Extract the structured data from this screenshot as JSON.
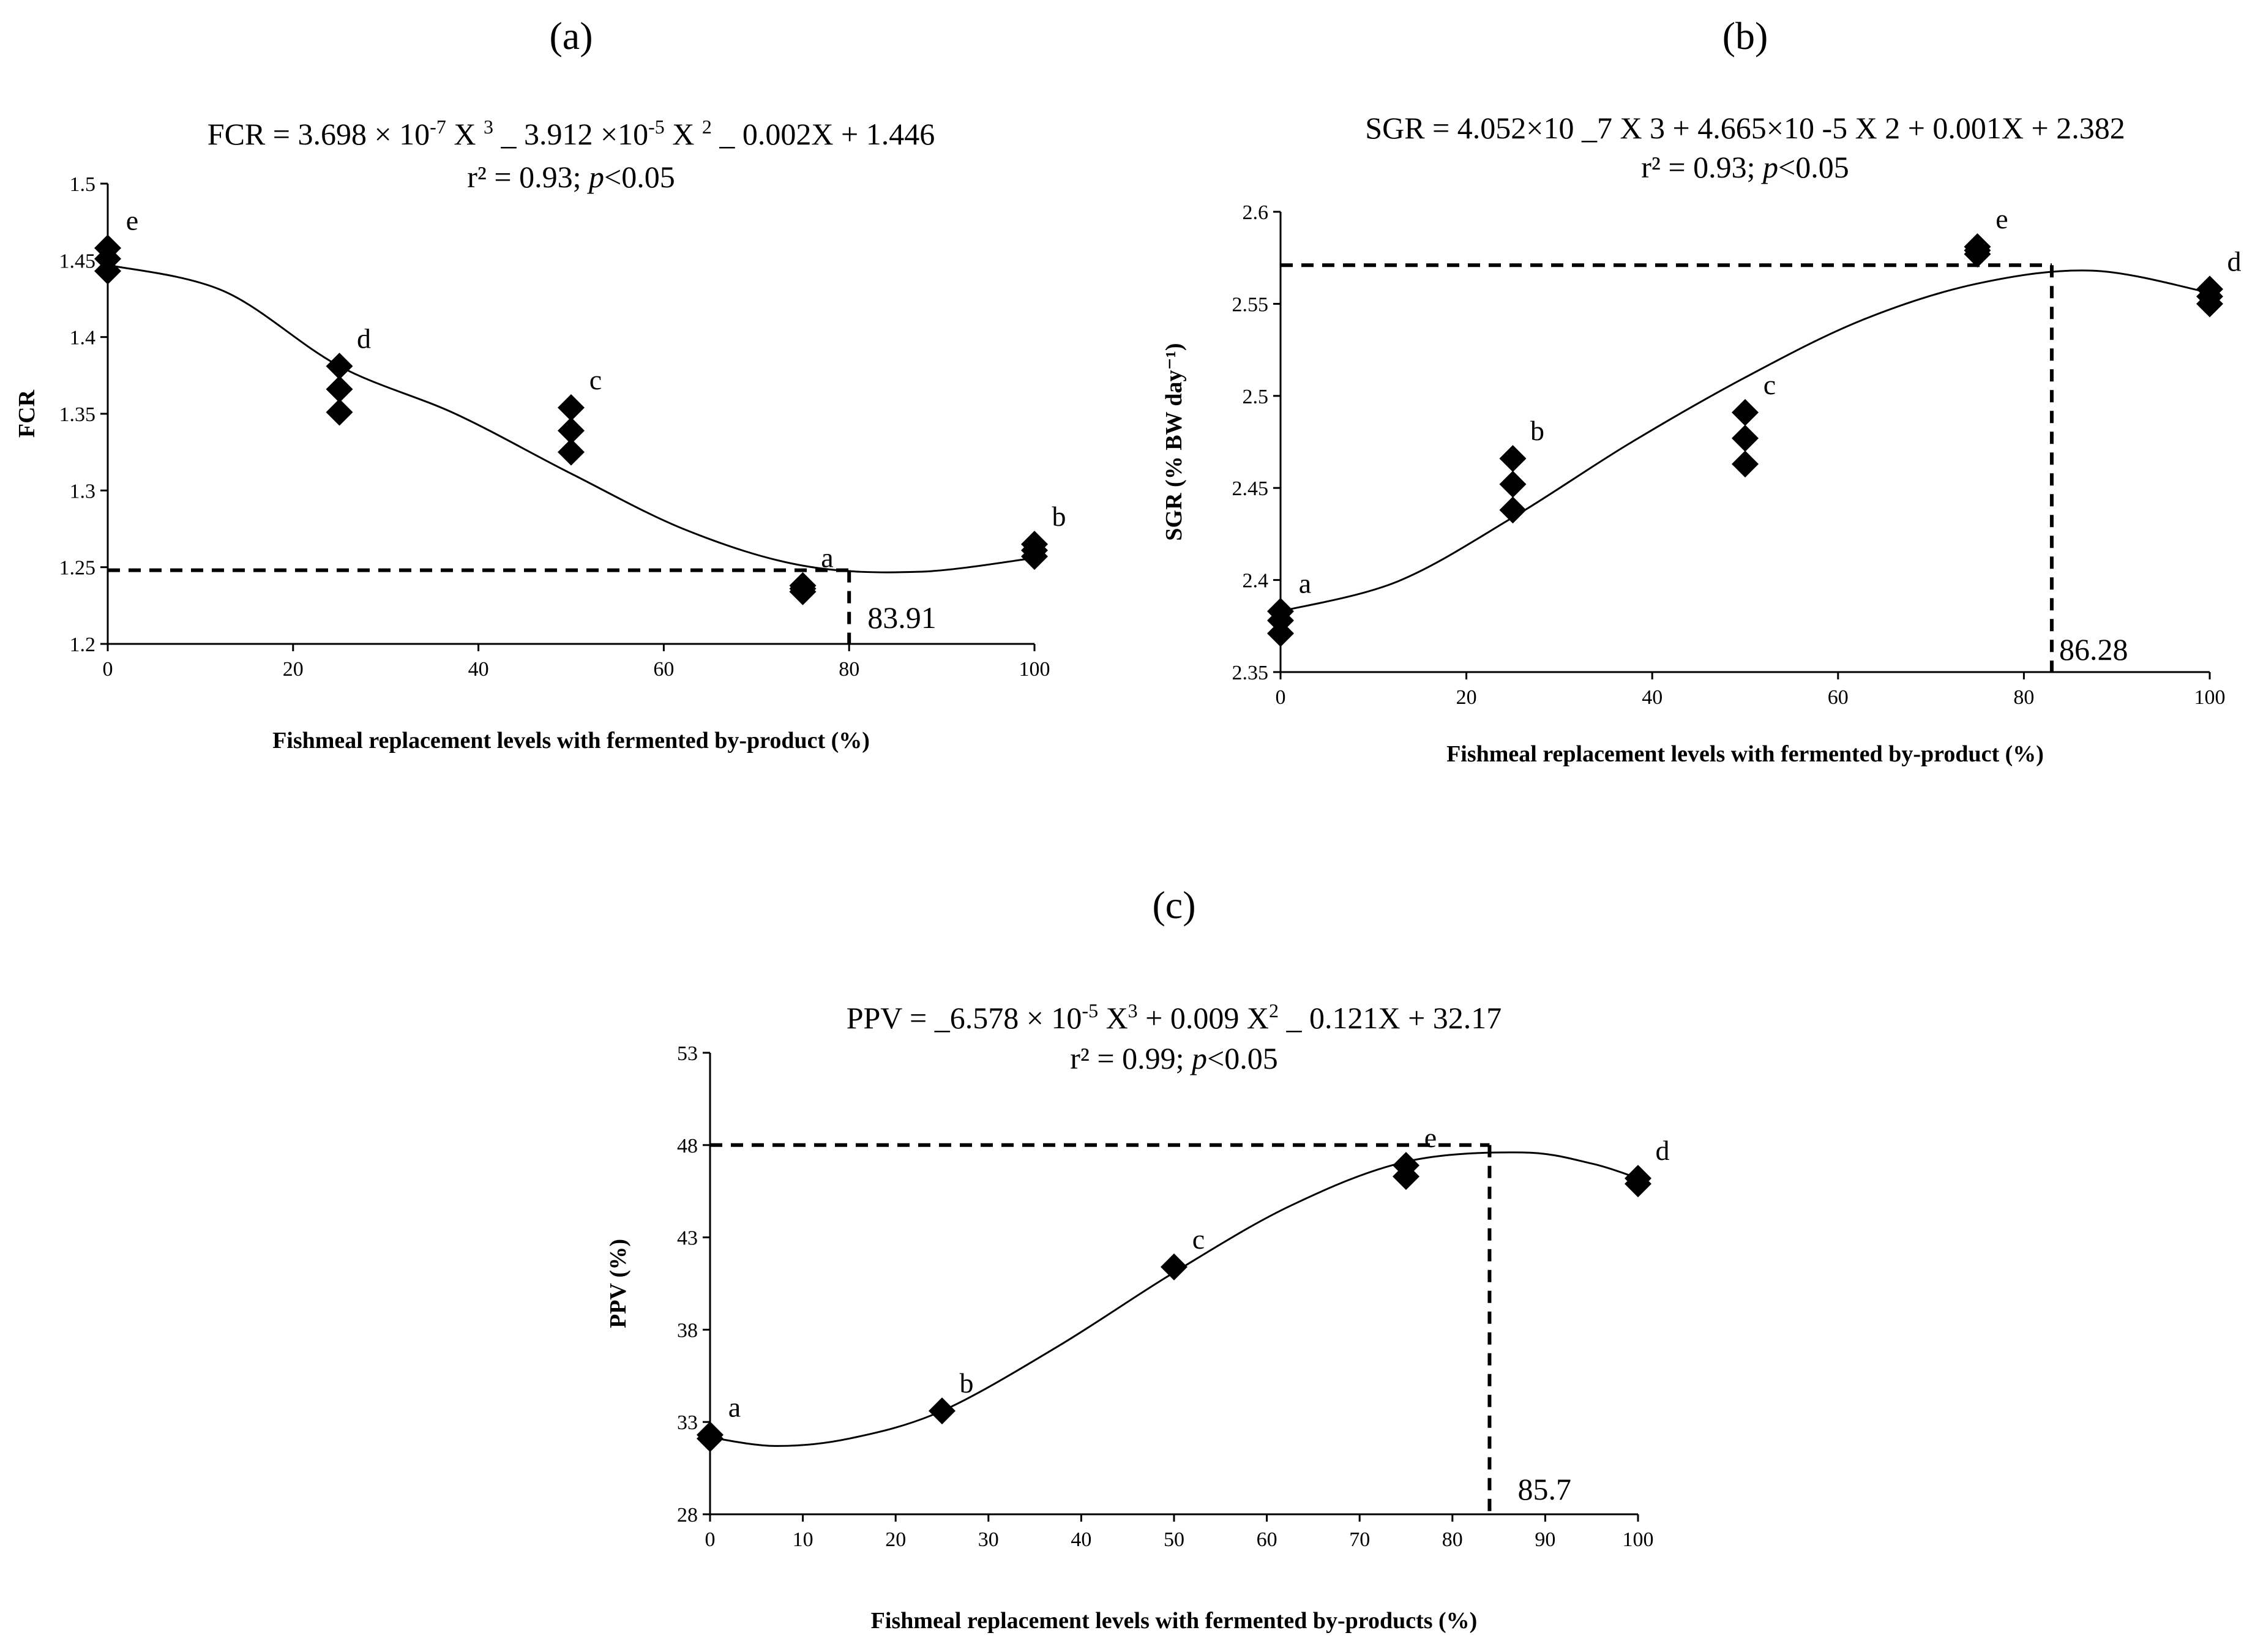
{
  "chart_data": [
    {
      "panel": "(a)",
      "type": "scatter",
      "title_lines": [
        "FCR = 3.698 × 10",
        "-7",
        " X ",
        "3",
        " _ 3.912 ×10",
        "-5",
        " X ",
        "2",
        " _ 0.002X + 1.446"
      ],
      "stats": {
        "r2": "r² = 0.93; ",
        "p": "p",
        "rest": "<0.05"
      },
      "ylabel": "FCR",
      "xlabel": "Fishmeal replacement levels with fermented by-product (%)",
      "xlim": [
        0,
        100
      ],
      "ylim": [
        1.2,
        1.5
      ],
      "xticks": [
        0,
        20,
        40,
        60,
        80,
        100
      ],
      "xtick_labels": [
        "0",
        "20",
        "40",
        "60",
        "80",
        "100"
      ],
      "yticks": [
        1.2,
        1.25,
        1.3,
        1.35,
        1.4,
        1.45,
        1.5
      ],
      "ytick_labels": [
        "1.2",
        "1.25",
        "1.3",
        "1.35",
        "1.4",
        "1.45",
        "1.5"
      ],
      "points": [
        {
          "x": 0,
          "y": 1.458
        },
        {
          "x": 0,
          "y": 1.451
        },
        {
          "x": 0,
          "y": 1.443
        },
        {
          "x": 25,
          "y": 1.381
        },
        {
          "x": 25,
          "y": 1.366
        },
        {
          "x": 25,
          "y": 1.351
        },
        {
          "x": 50,
          "y": 1.354
        },
        {
          "x": 50,
          "y": 1.339
        },
        {
          "x": 50,
          "y": 1.325
        },
        {
          "x": 75,
          "y": 1.238
        },
        {
          "x": 75,
          "y": 1.236
        },
        {
          "x": 75,
          "y": 1.234
        },
        {
          "x": 100,
          "y": 1.265
        },
        {
          "x": 100,
          "y": 1.261
        },
        {
          "x": 100,
          "y": 1.257
        }
      ],
      "group_letters": [
        {
          "x": 0,
          "y": 1.458,
          "text": "e"
        },
        {
          "x": 25,
          "y": 1.381,
          "text": "d"
        },
        {
          "x": 50,
          "y": 1.354,
          "text": "c"
        },
        {
          "x": 75,
          "y": 1.238,
          "text": "a"
        },
        {
          "x": 100,
          "y": 1.265,
          "text": "b"
        }
      ],
      "fit": [
        [
          0,
          1.447
        ],
        [
          12.5,
          1.43
        ],
        [
          25,
          1.381
        ],
        [
          37.5,
          1.35
        ],
        [
          50,
          1.311
        ],
        [
          62.5,
          1.274
        ],
        [
          75,
          1.251
        ],
        [
          87.5,
          1.247
        ],
        [
          100,
          1.256
        ]
      ],
      "optimum": {
        "x": 80,
        "y": 1.248,
        "label": "83.91"
      }
    },
    {
      "panel": "(b)",
      "type": "scatter",
      "title_lines": [
        "SGR = 4.052×10 _7 X 3 + 4.665×10 -5 X 2 + 0.001X + 2.382"
      ],
      "stats": {
        "r2": "r² = 0.93; ",
        "p": "p",
        "rest": "<0.05"
      },
      "ylabel": "SGR (% BW day⁻¹)",
      "xlabel": "Fishmeal replacement levels with fermented by-product (%)",
      "xlim": [
        0,
        100
      ],
      "ylim": [
        2.35,
        2.6
      ],
      "xticks": [
        0,
        20,
        40,
        60,
        80,
        100
      ],
      "xtick_labels": [
        "0",
        "20",
        "40",
        "60",
        "80",
        "100"
      ],
      "yticks": [
        2.35,
        2.4,
        2.45,
        2.5,
        2.55,
        2.6
      ],
      "ytick_labels": [
        "2.35",
        "2.4",
        "2.45",
        "2.5",
        "2.55",
        "2.6"
      ],
      "points": [
        {
          "x": 0,
          "y": 2.383
        },
        {
          "x": 0,
          "y": 2.378
        },
        {
          "x": 0,
          "y": 2.371
        },
        {
          "x": 25,
          "y": 2.466
        },
        {
          "x": 25,
          "y": 2.452
        },
        {
          "x": 25,
          "y": 2.438
        },
        {
          "x": 50,
          "y": 2.491
        },
        {
          "x": 50,
          "y": 2.477
        },
        {
          "x": 50,
          "y": 2.463
        },
        {
          "x": 75,
          "y": 2.581
        },
        {
          "x": 75,
          "y": 2.579
        },
        {
          "x": 75,
          "y": 2.577
        },
        {
          "x": 100,
          "y": 2.558
        },
        {
          "x": 100,
          "y": 2.554
        },
        {
          "x": 100,
          "y": 2.55
        }
      ],
      "group_letters": [
        {
          "x": 0,
          "y": 2.383,
          "text": "a"
        },
        {
          "x": 25,
          "y": 2.466,
          "text": "b"
        },
        {
          "x": 50,
          "y": 2.491,
          "text": "c"
        },
        {
          "x": 75,
          "y": 2.581,
          "text": "e"
        },
        {
          "x": 100,
          "y": 2.558,
          "text": "d"
        }
      ],
      "fit": [
        [
          0,
          2.383
        ],
        [
          12.5,
          2.399
        ],
        [
          25,
          2.434
        ],
        [
          37.5,
          2.474
        ],
        [
          50,
          2.51
        ],
        [
          62.5,
          2.541
        ],
        [
          75,
          2.561
        ],
        [
          87.5,
          2.568
        ],
        [
          100,
          2.556
        ]
      ],
      "optimum": {
        "x": 83,
        "y": 2.571,
        "label": "86.28"
      }
    },
    {
      "panel": "(c)",
      "type": "scatter",
      "title_lines": [
        "PPV = _6.578 × 10",
        "-5",
        " X",
        "3",
        " + 0.009 X",
        "2",
        " _ 0.121X + 32.17"
      ],
      "stats": {
        "r2": "r² = 0.99; ",
        "p": "p",
        "rest": "<0.05"
      },
      "ylabel": "PPV (%)",
      "xlabel": "Fishmeal replacement levels with fermented by-products (%)",
      "xlim": [
        0,
        100
      ],
      "ylim": [
        28,
        53
      ],
      "xticks": [
        0,
        10,
        20,
        30,
        40,
        50,
        60,
        70,
        80,
        90,
        100
      ],
      "xtick_labels": [
        "0",
        "10",
        "20",
        "30",
        "40",
        "50",
        "60",
        "70",
        "80",
        "90",
        "100"
      ],
      "yticks": [
        28,
        33,
        38,
        43,
        48,
        53
      ],
      "ytick_labels": [
        "28",
        "33",
        "38",
        "43",
        "48",
        "53"
      ],
      "points": [
        {
          "x": 0,
          "y": 32.3
        },
        {
          "x": 0,
          "y": 32.1
        },
        {
          "x": 25,
          "y": 33.6
        },
        {
          "x": 50,
          "y": 41.4
        },
        {
          "x": 75,
          "y": 46.9
        },
        {
          "x": 75,
          "y": 46.3
        },
        {
          "x": 100,
          "y": 46.2
        },
        {
          "x": 100,
          "y": 45.9
        }
      ],
      "group_letters": [
        {
          "x": 0,
          "y": 32.3,
          "text": "a"
        },
        {
          "x": 25,
          "y": 33.6,
          "text": "b"
        },
        {
          "x": 50,
          "y": 41.4,
          "text": "c"
        },
        {
          "x": 75,
          "y": 46.9,
          "text": "e"
        },
        {
          "x": 100,
          "y": 46.2,
          "text": "d"
        }
      ],
      "fit": [
        [
          0,
          32.17
        ],
        [
          7,
          31.7
        ],
        [
          15,
          32.1
        ],
        [
          25,
          33.6
        ],
        [
          37.5,
          37.1
        ],
        [
          50,
          41.1
        ],
        [
          62.5,
          44.7
        ],
        [
          75,
          47.1
        ],
        [
          87.5,
          47.6
        ],
        [
          95,
          47.0
        ],
        [
          100,
          46.2
        ]
      ],
      "optimum": {
        "x": 84,
        "y": 48,
        "label": "85.7"
      }
    }
  ]
}
